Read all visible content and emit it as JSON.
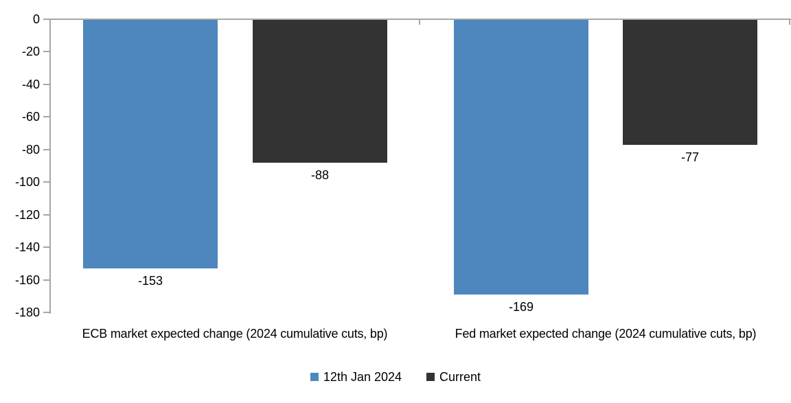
{
  "chart_data": {
    "type": "bar",
    "categories": [
      "ECB market expected change (2024 cumulative cuts, bp)",
      "Fed market expected change (2024 cumulative cuts, bp)"
    ],
    "series": [
      {
        "name": "12th Jan 2024",
        "color": "#4d87be",
        "values": [
          -153,
          -169
        ],
        "data_labels": [
          "-153",
          "-169"
        ]
      },
      {
        "name": "Current",
        "color": "#333333",
        "values": [
          -88,
          -77
        ],
        "data_labels": [
          "-88",
          "-77"
        ]
      }
    ],
    "ylim": [
      -180,
      0
    ],
    "yticks": [
      0,
      -20,
      -40,
      -60,
      -80,
      -100,
      -120,
      -140,
      -160,
      -180
    ],
    "ytick_labels": [
      "0",
      "-20",
      "-40",
      "-60",
      "-80",
      "-100",
      "-120",
      "-140",
      "-160",
      "-180"
    ],
    "xlabel": "",
    "ylabel": "",
    "title": "",
    "grid": false,
    "legend_position": "bottom",
    "axis_color": "#a6a6a6",
    "text_color": "#000000",
    "background_color": "#ffffff"
  }
}
